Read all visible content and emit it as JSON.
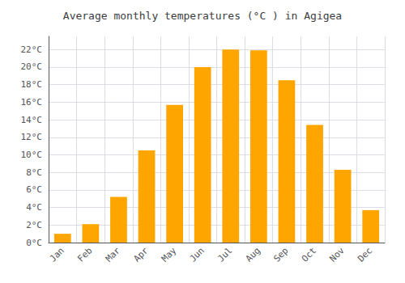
{
  "chart_data": {
    "type": "bar",
    "title": "Average monthly temperatures (°C ) in Agigea",
    "categories": [
      "Jan",
      "Feb",
      "Mar",
      "Apr",
      "May",
      "Jun",
      "Jul",
      "Aug",
      "Sep",
      "Oct",
      "Nov",
      "Dec"
    ],
    "values": [
      1.0,
      2.1,
      5.2,
      10.5,
      15.7,
      20.0,
      22.0,
      21.9,
      18.5,
      13.4,
      8.3,
      3.7
    ],
    "color": "#FFA500",
    "ylim": [
      0,
      23.5
    ],
    "yticks": [
      {
        "value": 0,
        "label": "0°C"
      },
      {
        "value": 2,
        "label": "2°C"
      },
      {
        "value": 4,
        "label": "4°C"
      },
      {
        "value": 6,
        "label": "6°C"
      },
      {
        "value": 8,
        "label": "8°C"
      },
      {
        "value": 10,
        "label": "10°C"
      },
      {
        "value": 12,
        "label": "12°C"
      },
      {
        "value": 14,
        "label": "14°C"
      },
      {
        "value": 16,
        "label": "16°C"
      },
      {
        "value": 18,
        "label": "18°C"
      },
      {
        "value": 20,
        "label": "20°C"
      },
      {
        "value": 22,
        "label": "22°C"
      }
    ],
    "grid": true
  }
}
